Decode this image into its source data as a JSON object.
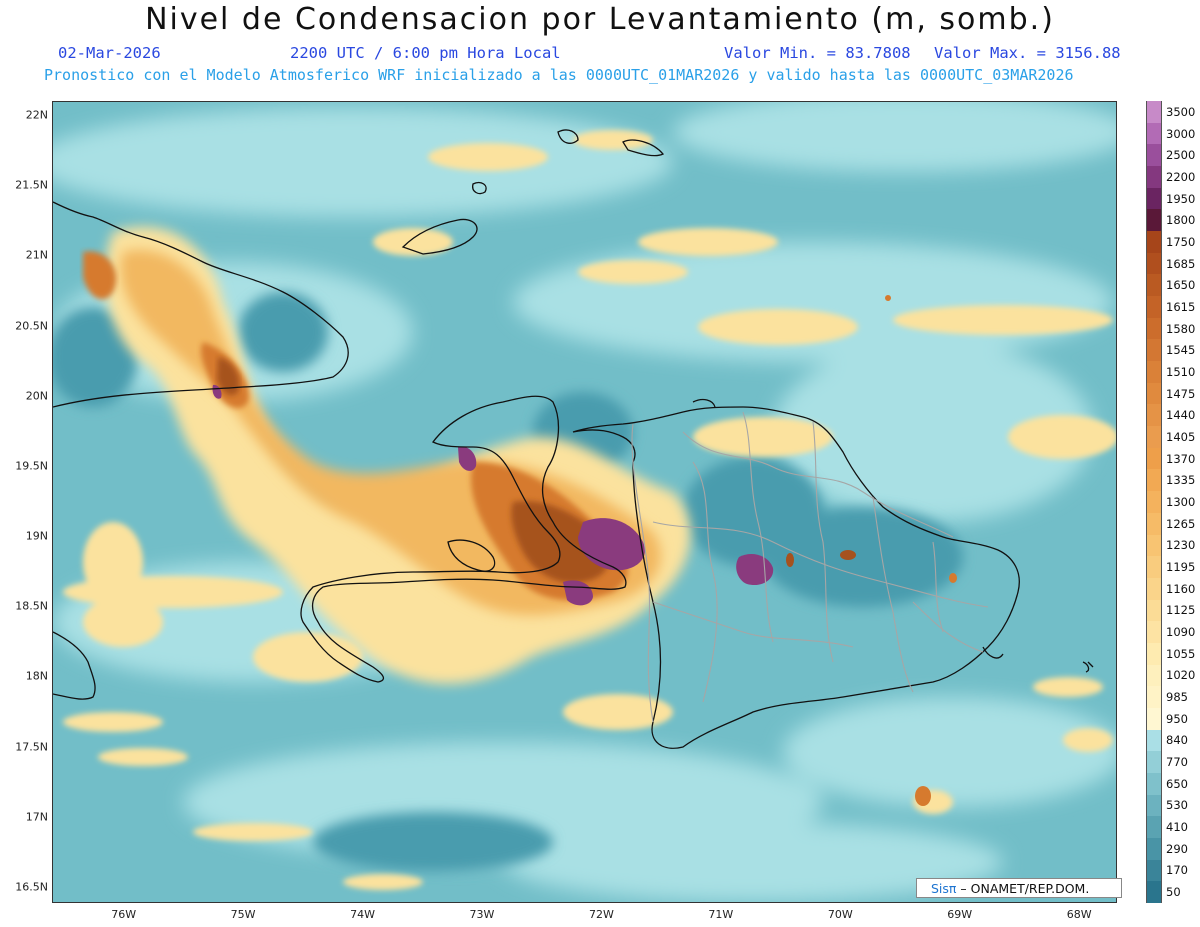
{
  "header": {
    "title": "Nivel de Condensacion por Levantamiento (m, somb.)",
    "date": "02-Mar-2026",
    "time": "2200 UTC / 6:00 pm Hora Local",
    "min_label": "Valor Min. = 83.7808",
    "max_label": "Valor Max. = 3156.88",
    "forecast": "Pronostico con el Modelo Atmosferico WRF inicializado a las 0000UTC_01MAR2026 y valido hasta las  0000UTC_03MAR2026"
  },
  "map": {
    "lat_labels": [
      "22N",
      "21.5N",
      "21N",
      "20.5N",
      "20N",
      "19.5N",
      "19N",
      "18.5N",
      "18N",
      "17.5N",
      "17N",
      "16.5N"
    ],
    "lon_labels": [
      "76W",
      "75W",
      "74W",
      "73W",
      "72W",
      "71W",
      "70W",
      "69W",
      "68W"
    ],
    "lat_range": [
      16.4,
      22.1
    ],
    "lon_range": [
      -76.6,
      -67.7
    ],
    "colors": {
      "ocean": "#72bec8",
      "ocean_dark": "#4a9cae",
      "light": "#a9e0e4",
      "yellow": "#fbe29e",
      "orange": "#f2b861",
      "dark_orange": "#d67a2e",
      "brown": "#a6521e",
      "purple": "#8a3b7e",
      "coast": "#111111",
      "border": "#a6a6a6"
    }
  },
  "colorbar": {
    "labels": [
      "3500",
      "3000",
      "2500",
      "2200",
      "1950",
      "1800",
      "1750",
      "1685",
      "1650",
      "1615",
      "1580",
      "1545",
      "1510",
      "1475",
      "1440",
      "1405",
      "1370",
      "1335",
      "1300",
      "1265",
      "1230",
      "1195",
      "1160",
      "1125",
      "1090",
      "1055",
      "1020",
      "985",
      "950",
      "840",
      "770",
      "650",
      "530",
      "410",
      "290",
      "170",
      "50"
    ],
    "colors": [
      "#c78ac8",
      "#b26bb5",
      "#9a4f9c",
      "#84387f",
      "#6a2461",
      "#5a1838",
      "#a6451a",
      "#b04f1e",
      "#ba5a22",
      "#c46327",
      "#cc6d2c",
      "#d37733",
      "#da8138",
      "#e08a3e",
      "#e59346",
      "#ea9c4e",
      "#ee9f4a",
      "#f2a953",
      "#f4b25d",
      "#f6bb67",
      "#f8c472",
      "#f9cc7e",
      "#fad48a",
      "#fbdc96",
      "#fde3a3",
      "#feebb0",
      "#fef0bd",
      "#fff3c6",
      "#fff7d2",
      "#aadfe6",
      "#93cfd7",
      "#7fc1cb",
      "#6cb2bf",
      "#5aa3b2",
      "#4994a6",
      "#3a8499",
      "#2a758d"
    ]
  },
  "credit": {
    "brand": "Sisπ",
    "text": " – ONAMET/REP.DOM."
  }
}
